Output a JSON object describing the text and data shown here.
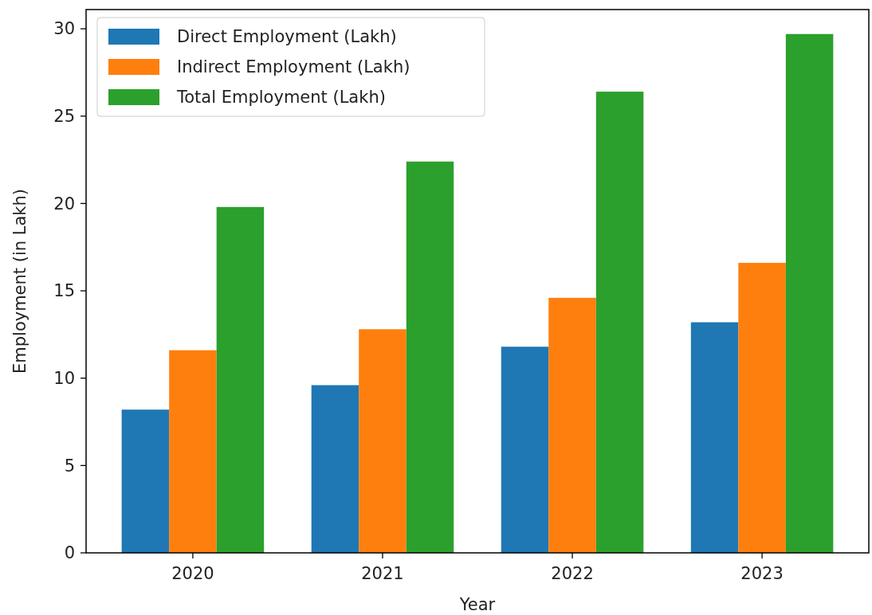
{
  "chart_data": {
    "type": "bar",
    "xlabel": "Year",
    "ylabel": "Employment (in Lakh)",
    "categories": [
      "2020",
      "2021",
      "2022",
      "2023"
    ],
    "series": [
      {
        "name": "Direct Employment (Lakh)",
        "color": "#1f77b4",
        "values": [
          8.2,
          9.6,
          11.8,
          13.2
        ]
      },
      {
        "name": "Indirect Employment (Lakh)",
        "color": "#ff7f0e",
        "values": [
          11.6,
          12.8,
          14.6,
          16.6
        ]
      },
      {
        "name": "Total Employment (Lakh)",
        "color": "#2ca02c",
        "values": [
          19.8,
          22.4,
          26.4,
          29.7
        ]
      }
    ],
    "ylim": [
      0,
      31.1
    ],
    "yticks": [
      0,
      5,
      10,
      15,
      20,
      25,
      30
    ],
    "grid": false,
    "legend": "top left"
  }
}
